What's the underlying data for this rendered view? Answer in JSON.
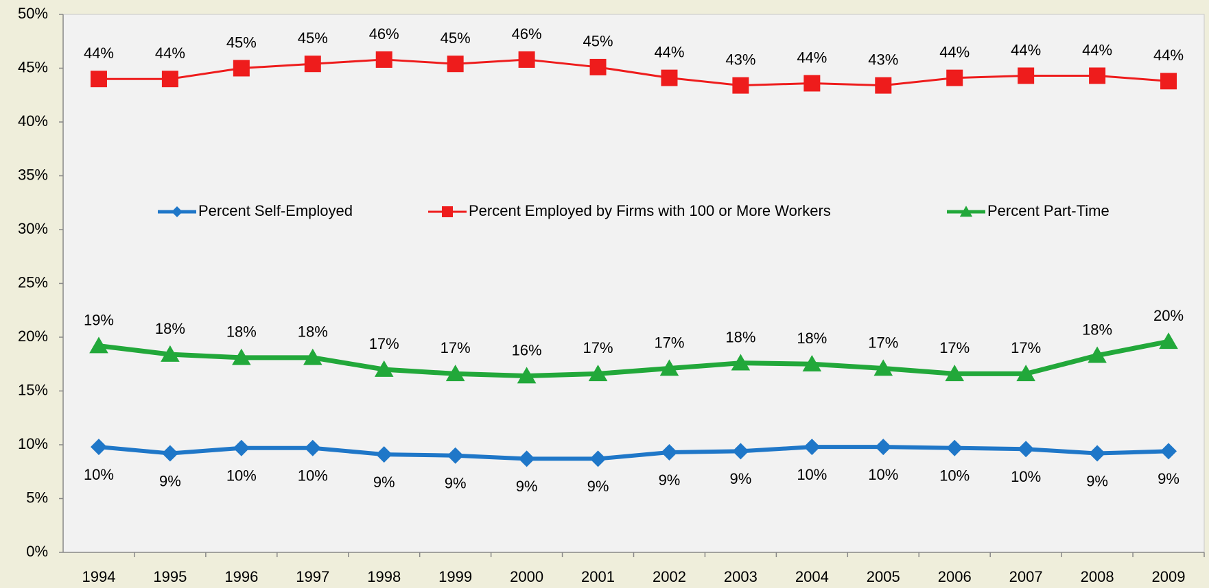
{
  "chart_data": {
    "type": "line",
    "categories": [
      "1994",
      "1995",
      "1996",
      "1997",
      "1998",
      "1999",
      "2000",
      "2001",
      "2002",
      "2003",
      "2004",
      "2005",
      "2006",
      "2007",
      "2008",
      "2009"
    ],
    "ylim": [
      0,
      50
    ],
    "yticks": [
      {
        "value": 0,
        "label": "0%"
      },
      {
        "value": 5,
        "label": "5%"
      },
      {
        "value": 10,
        "label": "10%"
      },
      {
        "value": 15,
        "label": "15%"
      },
      {
        "value": 20,
        "label": "20%"
      },
      {
        "value": 25,
        "label": "25%"
      },
      {
        "value": 30,
        "label": "30%"
      },
      {
        "value": 35,
        "label": "35%"
      },
      {
        "value": 40,
        "label": "40%"
      },
      {
        "value": 45,
        "label": "45%"
      },
      {
        "value": 50,
        "label": "50%"
      }
    ],
    "grid": false,
    "legend_position": "center",
    "series": [
      {
        "name": "Percent Self-Employed",
        "color": "#1f77c8",
        "marker": "diamond",
        "line_width": 6,
        "label_position": "below",
        "values": [
          9.8,
          9.2,
          9.7,
          9.7,
          9.1,
          9.0,
          8.7,
          8.7,
          9.3,
          9.4,
          9.8,
          9.8,
          9.7,
          9.6,
          9.2,
          9.4
        ],
        "value_labels": [
          "10%",
          "9%",
          "10%",
          "10%",
          "9%",
          "9%",
          "9%",
          "9%",
          "9%",
          "9%",
          "10%",
          "10%",
          "10%",
          "10%",
          "9%",
          "9%"
        ]
      },
      {
        "name": "Percent Employed by Firms with 100 or More Workers",
        "color": "#ee1c1c",
        "marker": "square",
        "line_width": 3,
        "label_position": "above",
        "values": [
          44.0,
          44.0,
          45.0,
          45.4,
          45.8,
          45.4,
          45.8,
          45.1,
          44.1,
          43.4,
          43.6,
          43.4,
          44.1,
          44.3,
          44.3,
          43.8
        ],
        "value_labels": [
          "44%",
          "44%",
          "45%",
          "45%",
          "46%",
          "45%",
          "46%",
          "45%",
          "44%",
          "43%",
          "44%",
          "43%",
          "44%",
          "44%",
          "44%",
          "44%"
        ]
      },
      {
        "name": "Percent Part-Time",
        "color": "#22a83a",
        "marker": "triangle",
        "line_width": 7,
        "label_position": "above",
        "values": [
          19.2,
          18.4,
          18.1,
          18.1,
          17.0,
          16.6,
          16.4,
          16.6,
          17.1,
          17.6,
          17.5,
          17.1,
          16.6,
          16.6,
          18.3,
          19.6
        ],
        "value_labels": [
          "19%",
          "18%",
          "18%",
          "18%",
          "17%",
          "17%",
          "16%",
          "17%",
          "17%",
          "18%",
          "18%",
          "17%",
          "17%",
          "17%",
          "18%",
          "20%"
        ]
      }
    ]
  }
}
